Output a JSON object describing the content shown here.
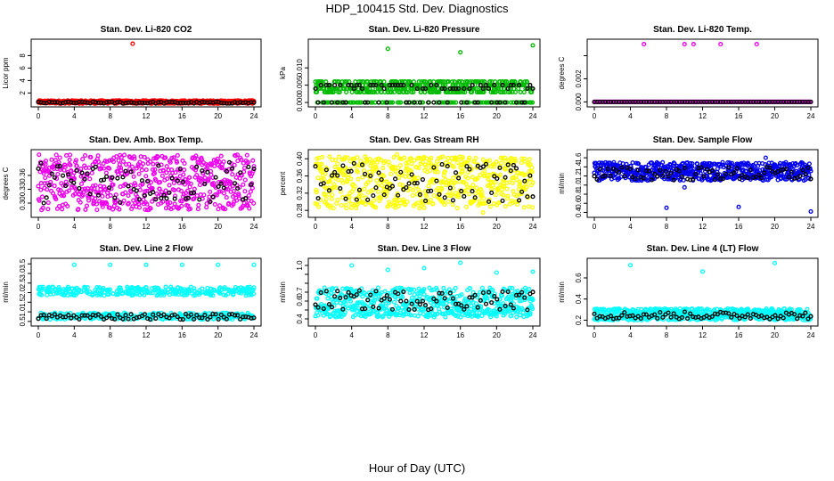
{
  "title": "HDP_100415 Std. Dev. Diagnostics",
  "xlabel": "Hour of Day (UTC)",
  "chart_data": [
    {
      "type": "scatter",
      "title": "Stan. Dev. Li-820 CO2",
      "ylabel": "Licor ppm",
      "xlim": [
        0,
        24
      ],
      "xticks": [
        0,
        4,
        8,
        12,
        16,
        20,
        24
      ],
      "ylim": [
        0.2,
        10.2
      ],
      "yticks": [
        2,
        4,
        6,
        8
      ],
      "series": [
        {
          "name": "main",
          "color": "#ff0000",
          "pattern": "band",
          "y_low": 0.3,
          "y_high": 0.8,
          "outliers": [
            [
              10.5,
              9.9
            ]
          ]
        },
        {
          "name": "reference",
          "color": "#000000",
          "pattern": "band",
          "y_low": 0.3,
          "y_high": 0.6,
          "outliers": []
        }
      ]
    },
    {
      "type": "scatter",
      "title": "Stan. Dev. Li-820 Pressure",
      "ylabel": "kPa",
      "xlim": [
        0,
        24
      ],
      "xticks": [
        0,
        4,
        8,
        12,
        16,
        20,
        24
      ],
      "ylim": [
        -0.0005,
        0.0175
      ],
      "yticks": [
        0.0,
        0.005,
        0.01
      ],
      "ytick_labels": [
        "0.000",
        "0.005",
        "0.010"
      ],
      "series": [
        {
          "name": "main",
          "color": "#00bb00",
          "pattern": "levels",
          "levels": [
            0.0,
            0.003,
            0.004,
            0.005,
            0.006
          ],
          "outliers": [
            [
              8,
              0.0155
            ],
            [
              16,
              0.0145
            ],
            [
              24,
              0.0165
            ]
          ]
        },
        {
          "name": "reference",
          "color": "#000000",
          "pattern": "levels",
          "levels": [
            0.0,
            0.004,
            0.005
          ],
          "outliers": []
        }
      ]
    },
    {
      "type": "scatter",
      "title": "Stan. Dev. Li-820 Temp.",
      "ylabel": "degrees C",
      "xlim": [
        0,
        24
      ],
      "xticks": [
        0,
        4,
        8,
        12,
        16,
        20,
        24
      ],
      "ylim": [
        -0.0002,
        0.0052
      ],
      "yticks": [
        0.0,
        0.002,
        0.004
      ],
      "ytick_labels": [
        "0.000",
        "0.002",
        ""
      ],
      "series": [
        {
          "name": "main",
          "color": "#ee00ee",
          "pattern": "flat",
          "y_value": 0.0,
          "outliers": [
            [
              5.5,
              0.005
            ],
            [
              10,
              0.005
            ],
            [
              11,
              0.005
            ],
            [
              14,
              0.005
            ],
            [
              18,
              0.005
            ],
            [
              0,
              0.0
            ]
          ]
        },
        {
          "name": "reference",
          "color": "#000000",
          "pattern": "flat",
          "y_value": 0.0,
          "outliers": []
        }
      ]
    },
    {
      "type": "scatter",
      "title": "Stan. Dev. Amb. Box Temp.",
      "ylabel": "degrees C",
      "xlim": [
        0,
        24
      ],
      "xticks": [
        0,
        4,
        8,
        12,
        16,
        20,
        24
      ],
      "ylim": [
        0.275,
        0.41
      ],
      "yticks": [
        0.3,
        0.33,
        0.36
      ],
      "ytick_labels": [
        "0.30",
        "0.33",
        "0.36"
      ],
      "series": [
        {
          "name": "main",
          "color": "#ee00ee",
          "pattern": "band",
          "y_low": 0.285,
          "y_high": 0.405,
          "outliers": []
        },
        {
          "name": "reference",
          "color": "#000000",
          "pattern": "band",
          "y_low": 0.3,
          "y_high": 0.39,
          "outliers": []
        }
      ]
    },
    {
      "type": "scatter",
      "title": "Stan. Dev. Gas Stream RH",
      "ylabel": "percent",
      "xlim": [
        0,
        24
      ],
      "xticks": [
        0,
        4,
        8,
        12,
        16,
        20,
        24
      ],
      "ylim": [
        0.27,
        0.415
      ],
      "yticks": [
        0.28,
        0.32,
        0.36,
        0.4
      ],
      "ytick_labels": [
        "0.28",
        "0.32",
        "0.36",
        "0.40"
      ],
      "series": [
        {
          "name": "main",
          "color": "#ffff00",
          "pattern": "band",
          "y_low": 0.285,
          "y_high": 0.405,
          "outliers": [
            [
              18.5,
              0.275
            ],
            [
              9,
              0.41
            ]
          ]
        },
        {
          "name": "reference",
          "color": "#000000",
          "pattern": "band",
          "y_low": 0.3,
          "y_high": 0.39,
          "outliers": []
        }
      ]
    },
    {
      "type": "scatter",
      "title": "Stan. Dev. Sample Flow",
      "ylabel": "ml/min",
      "xlim": [
        0,
        24
      ],
      "xticks": [
        0,
        4,
        8,
        12,
        16,
        20,
        24
      ],
      "ylim": [
        0.35,
        1.72
      ],
      "yticks": [
        0.4,
        0.6,
        0.8,
        1.0,
        1.2,
        1.4,
        1.6
      ],
      "ytick_labels": [
        "0.4",
        "0.6",
        "0.8",
        "1.0",
        "1.2",
        "1.4",
        "1.6"
      ],
      "series": [
        {
          "name": "main",
          "color": "#0000ee",
          "pattern": "band",
          "y_low": 1.1,
          "y_high": 1.5,
          "outliers": [
            [
              8,
              0.5
            ],
            [
              16,
              0.52
            ],
            [
              24,
              0.42
            ],
            [
              10,
              0.95
            ],
            [
              19,
              1.6
            ]
          ]
        },
        {
          "name": "reference",
          "color": "#000000",
          "pattern": "band",
          "y_low": 1.1,
          "y_high": 1.4,
          "outliers": []
        }
      ]
    },
    {
      "type": "scatter",
      "title": "Stan. Dev. Line 2 Flow",
      "ylabel": "ml/min",
      "xlim": [
        0,
        24
      ],
      "xticks": [
        0,
        4,
        8,
        12,
        16,
        20,
        24
      ],
      "ylim": [
        0.4,
        3.65
      ],
      "yticks": [
        0.5,
        1.0,
        1.5,
        2.0,
        2.5,
        3.0,
        3.5
      ],
      "ytick_labels": [
        "0.5",
        "1.0",
        "1.5",
        "2.0",
        "2.5",
        "3.0",
        "3.5"
      ],
      "series": [
        {
          "name": "main",
          "color": "#00ffff",
          "pattern": "twobands",
          "bands": [
            [
              0.6,
              0.95
            ],
            [
              1.85,
              2.3
            ]
          ],
          "outliers": [
            [
              4,
              3.45
            ],
            [
              8,
              3.45
            ],
            [
              12,
              3.45
            ],
            [
              16,
              3.45
            ],
            [
              20,
              3.45
            ],
            [
              24,
              3.45
            ]
          ]
        },
        {
          "name": "reference",
          "color": "#000000",
          "pattern": "band",
          "y_low": 0.6,
          "y_high": 0.9,
          "outliers": []
        }
      ]
    },
    {
      "type": "scatter",
      "title": "Stan. Dev. Line 3 Flow",
      "ylabel": "ml/min",
      "xlim": [
        0,
        24
      ],
      "xticks": [
        0,
        4,
        8,
        12,
        16,
        20,
        24
      ],
      "ylim": [
        0.35,
        1.05
      ],
      "yticks": [
        0.4,
        0.5,
        0.6,
        0.7,
        0.8,
        0.9,
        1.0
      ],
      "ytick_labels": [
        "0.4",
        "",
        "0.6",
        "0.7",
        "",
        "",
        "1.0"
      ],
      "series": [
        {
          "name": "main",
          "color": "#00ffff",
          "pattern": "twobands",
          "bands": [
            [
              0.42,
              0.55
            ],
            [
              0.56,
              0.75
            ]
          ],
          "outliers": [
            [
              4,
              1.0
            ],
            [
              8,
              0.95
            ],
            [
              12,
              0.97
            ],
            [
              16,
              1.03
            ],
            [
              20,
              0.92
            ],
            [
              24,
              0.93
            ]
          ]
        },
        {
          "name": "reference",
          "color": "#000000",
          "pattern": "band",
          "y_low": 0.5,
          "y_high": 0.72,
          "outliers": []
        }
      ]
    },
    {
      "type": "scatter",
      "title": "Stan. Dev. Line 4 (LT) Flow",
      "ylabel": "ml/min",
      "xlim": [
        0,
        24
      ],
      "xticks": [
        0,
        4,
        8,
        12,
        16,
        20,
        24
      ],
      "ylim": [
        0.17,
        0.76
      ],
      "yticks": [
        0.2,
        0.4,
        0.6
      ],
      "ytick_labels": [
        "0.2",
        "0.4",
        "0.6"
      ],
      "series": [
        {
          "name": "main",
          "color": "#00ffff",
          "pattern": "band",
          "y_low": 0.2,
          "y_high": 0.31,
          "outliers": [
            [
              4,
              0.72
            ],
            [
              12,
              0.66
            ],
            [
              20,
              0.74
            ]
          ]
        },
        {
          "name": "reference",
          "color": "#000000",
          "pattern": "band",
          "y_low": 0.21,
          "y_high": 0.28,
          "outliers": []
        }
      ]
    }
  ]
}
